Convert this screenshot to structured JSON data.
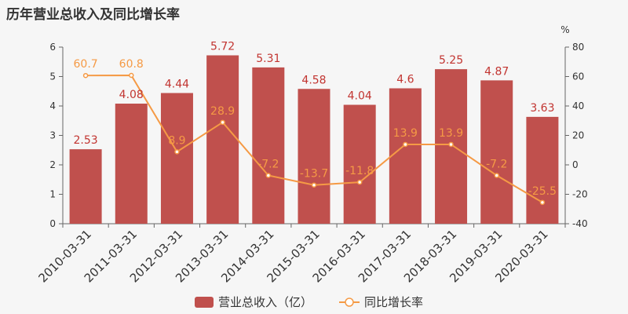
{
  "title": "历年营业总收入及同比增长率",
  "colors": {
    "bar": "#c0504d",
    "line": "#f59a45",
    "bar_label": "#c23531",
    "axis": "#666666"
  },
  "legend": {
    "bar_label": "营业总收入（亿）",
    "line_label": "同比增长率"
  },
  "chart_data": {
    "type": "bar",
    "categories": [
      "2010-03-31",
      "2011-03-31",
      "2012-03-31",
      "2013-03-31",
      "2014-03-31",
      "2015-03-31",
      "2016-03-31",
      "2017-03-31",
      "2018-03-31",
      "2019-03-31",
      "2020-03-31"
    ],
    "series": [
      {
        "name": "营业总收入（亿）",
        "type": "bar",
        "axis": "left",
        "values": [
          2.53,
          4.08,
          4.44,
          5.72,
          5.31,
          4.58,
          4.04,
          4.6,
          5.25,
          4.87,
          3.63
        ]
      },
      {
        "name": "同比增长率",
        "type": "line",
        "axis": "right",
        "values": [
          60.7,
          60.8,
          8.9,
          28.9,
          -7.2,
          -13.7,
          -11.8,
          13.9,
          13.9,
          -7.2,
          -25.5
        ]
      }
    ],
    "left_axis": {
      "ylim": [
        0,
        6
      ],
      "ticks": [
        0,
        1,
        2,
        3,
        4,
        5,
        6
      ]
    },
    "right_axis": {
      "unit": "%",
      "ylim": [
        -40,
        80
      ],
      "ticks": [
        -40,
        -20,
        0,
        20,
        40,
        60,
        80
      ]
    },
    "legend_position": "bottom"
  }
}
